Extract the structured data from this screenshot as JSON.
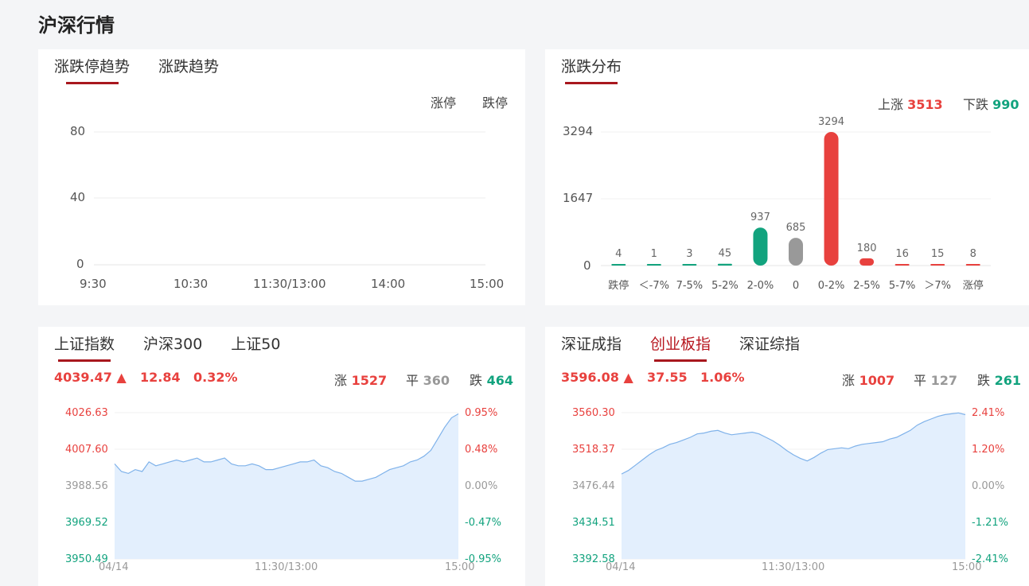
{
  "page_title": "沪深行情",
  "panel_trend": {
    "tabs": [
      "涨跌停趋势",
      "涨跌趋势"
    ],
    "legend": [
      "涨停",
      "跌停"
    ],
    "y_ticks": [
      "80",
      "40",
      "0"
    ],
    "x_ticks": [
      "9:30",
      "10:30",
      "11:30/13:00",
      "14:00",
      "15:00"
    ]
  },
  "panel_dist": {
    "tabs": [
      "涨跌分布"
    ],
    "up_label": "上涨",
    "up_value": "3513",
    "down_label": "下跌",
    "down_value": "990",
    "y_ticks": [
      "3294",
      "1647",
      "0"
    ]
  },
  "panel_sh": {
    "tabs": [
      "上证指数",
      "沪深300",
      "上证50"
    ],
    "price": "4039.47",
    "change": "12.84",
    "pct": "0.32%",
    "up_label": "涨",
    "up_count": "1527",
    "flat_label": "平",
    "flat_count": "360",
    "down_label": "跌",
    "down_count": "464",
    "y_left": [
      "4026.63",
      "4007.60",
      "3988.56",
      "3969.52",
      "3950.49"
    ],
    "y_right": [
      "0.95%",
      "0.48%",
      "0.00%",
      "-0.47%",
      "-0.95%"
    ],
    "x_ticks": [
      "04/14",
      "11:30/13:00",
      "15:00"
    ]
  },
  "panel_sz": {
    "tabs": [
      "深证成指",
      "创业板指",
      "深证综指"
    ],
    "price": "3596.08",
    "change": "37.55",
    "pct": "1.06%",
    "up_label": "涨",
    "up_count": "1007",
    "flat_label": "平",
    "flat_count": "127",
    "down_label": "跌",
    "down_count": "261",
    "y_left": [
      "3560.30",
      "3518.37",
      "3476.44",
      "3434.51",
      "3392.58"
    ],
    "y_right": [
      "2.41%",
      "1.20%",
      "0.00%",
      "-1.21%",
      "-2.41%"
    ],
    "x_ticks": [
      "04/14",
      "11:30/13:00",
      "15:00"
    ]
  },
  "chart_data": [
    {
      "type": "line",
      "xlabel": "",
      "ylabel": "",
      "x_ticks": [
        "9:30",
        "10:30",
        "11:30/13:00",
        "14:00",
        "15:00"
      ],
      "ylim": [
        0,
        80
      ],
      "series": [
        {
          "name": "涨停",
          "values": []
        },
        {
          "name": "跌停",
          "values": []
        }
      ],
      "grid": true,
      "legend": "top-right"
    },
    {
      "type": "bar",
      "categories": [
        "跌停",
        "<-7%",
        "7-5%",
        "5-2%",
        "2-0%",
        "0",
        "0-2%",
        "2-5%",
        "5-7%",
        ">7%",
        "涨停"
      ],
      "category_labels": [
        "跌停",
        "＜-7%",
        "7-5%",
        "5-2%",
        "2-0%",
        "0",
        "0-2%",
        "2-5%",
        "5-7%",
        "＞7%",
        "涨停"
      ],
      "values": [
        4,
        1,
        3,
        45,
        937,
        685,
        3294,
        180,
        16,
        15,
        8
      ],
      "colors": [
        "#12a37e",
        "#12a37e",
        "#12a37e",
        "#12a37e",
        "#12a37e",
        "#999999",
        "#e8413e",
        "#e8413e",
        "#e8413e",
        "#e8413e",
        "#e8413e"
      ],
      "ylim": [
        0,
        3294
      ]
    },
    {
      "type": "area",
      "ylim": [
        3950.49,
        4026.63
      ],
      "x_ticks": [
        "04/14",
        "11:30/13:00",
        "15:00"
      ],
      "values": [
        4000,
        3996,
        3995,
        3997,
        3996,
        4001,
        3999,
        4000,
        4001,
        4002,
        4001,
        4002,
        4003,
        4001,
        4001,
        4002,
        4003,
        4000,
        3999,
        3999,
        4000,
        3999,
        3997,
        3997,
        3998,
        3999,
        4000,
        4001,
        4001,
        4002,
        3999,
        3998,
        3996,
        3995,
        3993,
        3991,
        3991,
        3992,
        3993,
        3995,
        3997,
        3998,
        3999,
        4001,
        4002,
        4004,
        4007,
        4013,
        4019,
        4024,
        4026
      ]
    },
    {
      "type": "area",
      "ylim": [
        3392.58,
        3560.3
      ],
      "x_ticks": [
        "04/14",
        "11:30/13:00",
        "15:00"
      ],
      "values": [
        3490,
        3494,
        3500,
        3506,
        3512,
        3517,
        3520,
        3524,
        3526,
        3529,
        3532,
        3536,
        3537,
        3539,
        3540,
        3537,
        3535,
        3536,
        3537,
        3538,
        3536,
        3532,
        3528,
        3523,
        3517,
        3512,
        3508,
        3505,
        3509,
        3514,
        3518,
        3519,
        3520,
        3519,
        3522,
        3524,
        3525,
        3526,
        3527,
        3530,
        3532,
        3536,
        3540,
        3546,
        3550,
        3553,
        3556,
        3558,
        3559,
        3560,
        3558
      ]
    }
  ]
}
